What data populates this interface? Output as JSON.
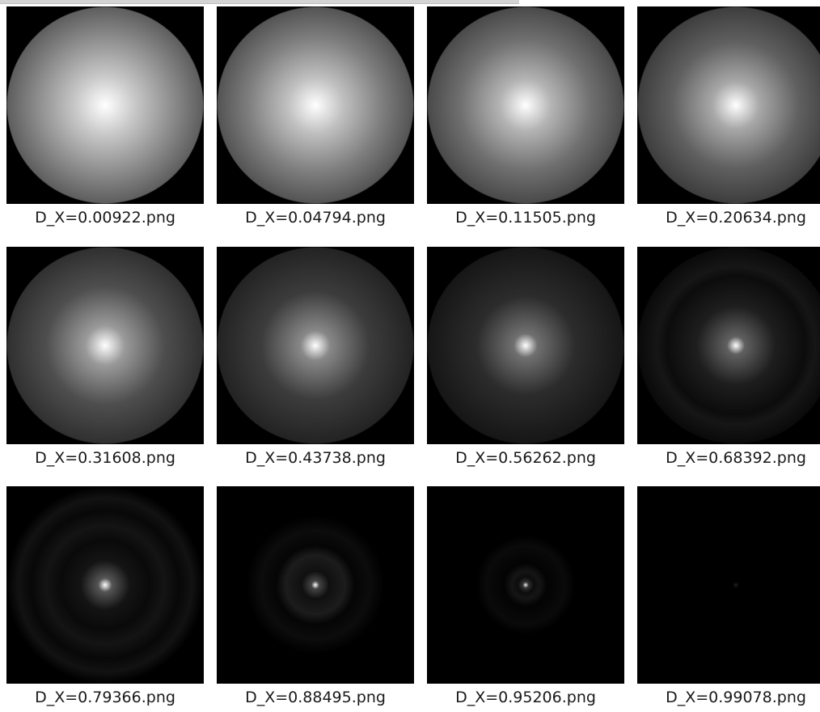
{
  "files": [
    "D_X=0.00922.png",
    "D_X=0.04794.png",
    "D_X=0.11505.png",
    "D_X=0.20634.png",
    "D_X=0.31608.png",
    "D_X=0.43738.png",
    "D_X=0.56262.png",
    "D_X=0.68392.png",
    "D_X=0.79366.png",
    "D_X=0.88495.png",
    "D_X=0.95206.png",
    "D_X=0.99078.png"
  ]
}
